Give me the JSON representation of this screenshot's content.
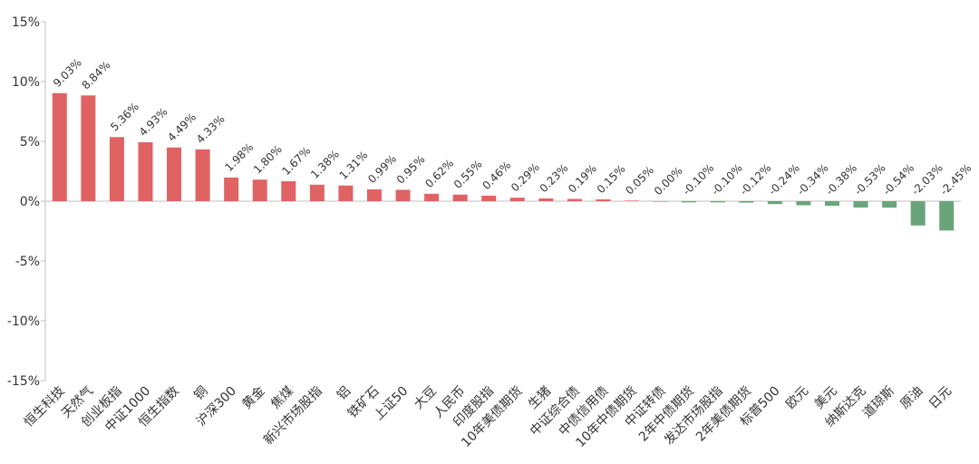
{
  "chart_data": {
    "type": "bar",
    "title": "",
    "xlabel": "",
    "ylabel": "",
    "ylim": [
      -15,
      15
    ],
    "yticks": [
      "15%",
      "10%",
      "5%",
      "0%",
      "-5%",
      "-10%",
      "-15%"
    ],
    "ytick_values": [
      15,
      10,
      5,
      0,
      -5,
      -10,
      -15
    ],
    "grid": false,
    "legend": "none",
    "colors": {
      "positive": "#e06363",
      "negative": "#6aa57a",
      "axis": "#bfbfbf",
      "text": "#333333"
    },
    "categories": [
      "恒生科技",
      "天然气",
      "创业板指",
      "中证1000",
      "恒生指数",
      "铜",
      "沪深300",
      "黄金",
      "焦煤",
      "新兴市场股指",
      "铝",
      "铁矿石",
      "上证50",
      "大豆",
      "人民币",
      "印度股指",
      "10年美债期货",
      "生猪",
      "中证综合债",
      "中债信用债",
      "10年中债期货",
      "中证转债",
      "2年中债期货",
      "发达市场股指",
      "2年美债期货",
      "标普500",
      "欧元",
      "美元",
      "纳斯达克",
      "道琼斯",
      "原油",
      "日元"
    ],
    "values": [
      9.03,
      8.84,
      5.36,
      4.93,
      4.49,
      4.33,
      1.98,
      1.8,
      1.67,
      1.38,
      1.31,
      0.99,
      0.95,
      0.62,
      0.55,
      0.46,
      0.29,
      0.23,
      0.19,
      0.15,
      0.05,
      0.0,
      -0.1,
      -0.1,
      -0.12,
      -0.24,
      -0.34,
      -0.38,
      -0.53,
      -0.54,
      -2.03,
      -2.45
    ],
    "data_labels": [
      "9.03%",
      "8.84%",
      "5.36%",
      "4.93%",
      "4.49%",
      "4.33%",
      "1.98%",
      "1.80%",
      "1.67%",
      "1.38%",
      "1.31%",
      "0.99%",
      "0.95%",
      "0.62%",
      "0.55%",
      "0.46%",
      "0.29%",
      "0.23%",
      "0.19%",
      "0.15%",
      "0.05%",
      "0.00%",
      "-0.10%",
      "-0.10%",
      "-0.12%",
      "-0.24%",
      "-0.34%",
      "-0.38%",
      "-0.53%",
      "-0.54%",
      "-2.03%",
      "-2.45%"
    ]
  }
}
